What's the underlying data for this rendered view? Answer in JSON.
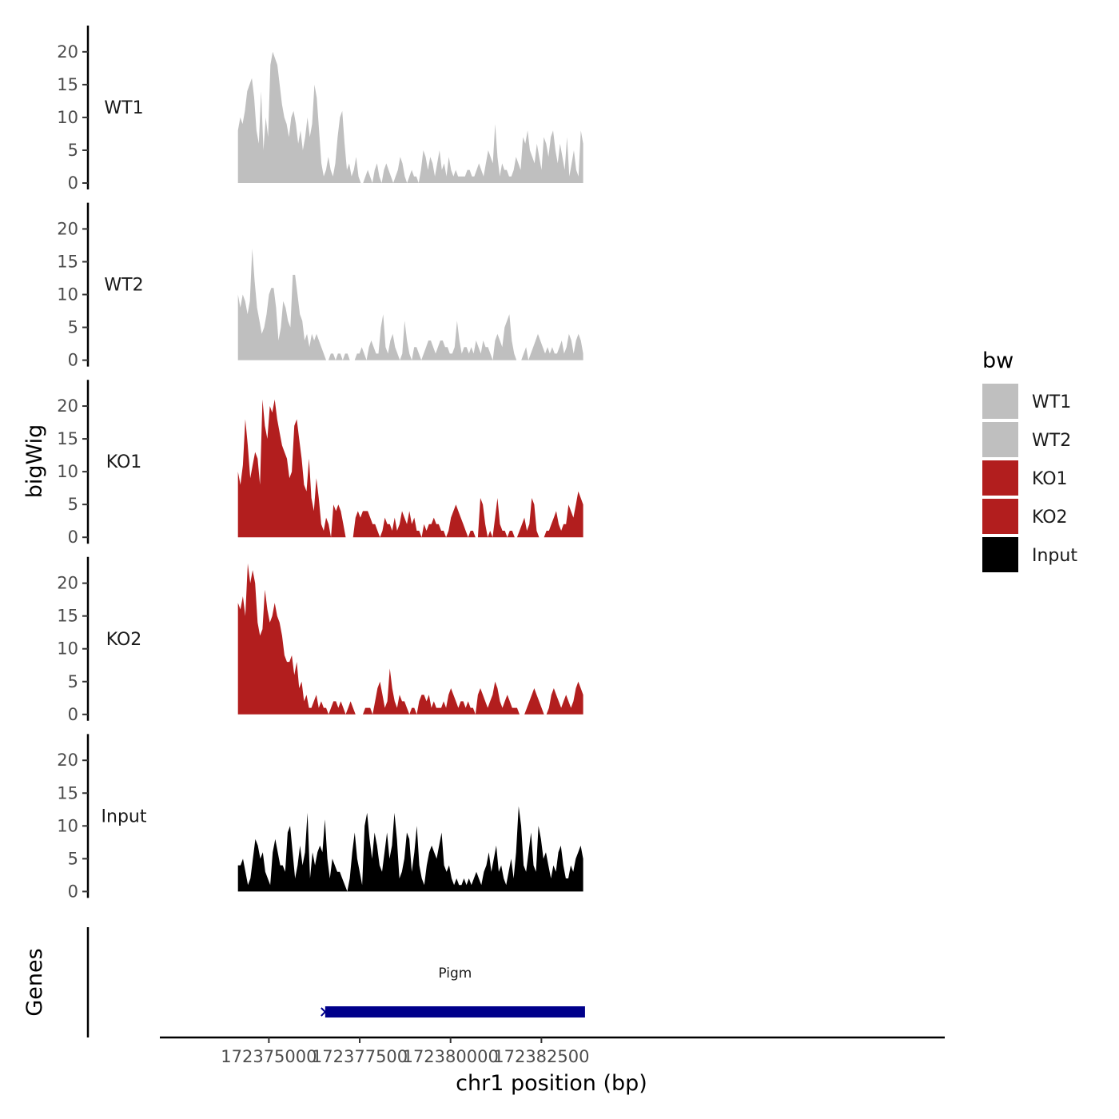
{
  "chart_data": {
    "type": "area",
    "ylabel": "bigWig",
    "xlabel": "chr1 position (bp)",
    "ylim": [
      0,
      24
    ],
    "yticks": [
      0,
      5,
      10,
      15,
      20
    ],
    "xlim": [
      172372000,
      172393600
    ],
    "xticks": [
      172375000,
      172377500,
      172380000,
      172382500
    ],
    "xtick_labels": [
      "172375000",
      "172377500",
      "172380000",
      "172382500"
    ],
    "x_start": 172374150,
    "x_end": 172383650,
    "legend": {
      "title": "bw",
      "position": "right",
      "entries": [
        {
          "label": "WT1",
          "color": "#bfbfbf"
        },
        {
          "label": "WT2",
          "color": "#bfbfbf"
        },
        {
          "label": "KO1",
          "color": "#b21e1e"
        },
        {
          "label": "KO2",
          "color": "#b21e1e"
        },
        {
          "label": "Input",
          "color": "#000000"
        }
      ]
    },
    "series": [
      {
        "name": "WT1",
        "color": "#bfbfbf",
        "values": [
          8,
          10,
          9,
          11,
          14,
          15,
          16,
          13,
          8,
          6,
          14,
          5,
          10,
          7,
          18,
          20,
          19,
          18,
          15,
          12,
          10,
          9,
          7,
          10,
          11,
          9,
          6,
          8,
          5,
          7,
          10,
          7,
          9,
          15,
          13,
          8,
          3,
          1,
          2,
          4,
          2,
          1,
          3,
          7,
          10,
          11,
          6,
          2,
          3,
          1,
          2,
          4,
          1,
          0,
          0,
          1,
          2,
          1,
          0,
          2,
          3,
          1,
          0,
          2,
          3,
          2,
          1,
          0,
          1,
          2,
          4,
          3,
          1,
          0,
          1,
          2,
          1,
          1,
          0,
          2,
          5,
          4,
          2,
          4,
          3,
          1,
          3,
          5,
          2,
          3,
          1,
          4,
          2,
          1,
          2,
          1,
          1,
          1,
          1,
          2,
          2,
          1,
          1,
          2,
          3,
          2,
          1,
          3,
          5,
          4,
          3,
          9,
          4,
          1,
          3,
          2,
          2,
          1,
          1,
          2,
          4,
          3,
          2,
          7,
          6,
          8,
          5,
          4,
          3,
          6,
          4,
          2,
          7,
          6,
          4,
          7,
          8,
          5,
          3,
          6,
          4,
          2,
          7,
          1,
          3,
          5,
          2,
          1,
          8,
          6
        ]
      },
      {
        "name": "WT2",
        "color": "#bfbfbf",
        "values": [
          10,
          8,
          10,
          9,
          7,
          9,
          17,
          12,
          8,
          6,
          4,
          5,
          7,
          10,
          11,
          11,
          8,
          3,
          5,
          9,
          8,
          6,
          5,
          13,
          13,
          10,
          7,
          6,
          3,
          4,
          2,
          4,
          3,
          4,
          3,
          2,
          1,
          0,
          0,
          1,
          1,
          0,
          1,
          1,
          0,
          1,
          1,
          0,
          0,
          0,
          1,
          1,
          2,
          1,
          0,
          2,
          3,
          2,
          1,
          1,
          5,
          7,
          2,
          1,
          3,
          4,
          2,
          1,
          0,
          1,
          6,
          3,
          1,
          0,
          2,
          2,
          1,
          0,
          1,
          2,
          3,
          3,
          2,
          1,
          2,
          3,
          3,
          2,
          2,
          1,
          1,
          2,
          6,
          3,
          1,
          2,
          2,
          1,
          2,
          1,
          3,
          2,
          1,
          3,
          2,
          2,
          1,
          0,
          3,
          4,
          3,
          2,
          5,
          6,
          7,
          3,
          1,
          0,
          0,
          0,
          1,
          2,
          0,
          1,
          2,
          3,
          4,
          3,
          2,
          1,
          2,
          1,
          2,
          1,
          1,
          2,
          3,
          1,
          2,
          4,
          3,
          1,
          3,
          4,
          3,
          1
        ]
      },
      {
        "name": "KO1",
        "color": "#b21e1e",
        "values": [
          10,
          8,
          11,
          18,
          14,
          9,
          11,
          13,
          12,
          8,
          21,
          17,
          15,
          20,
          19,
          21,
          18,
          16,
          14,
          13,
          12,
          9,
          10,
          17,
          18,
          15,
          12,
          8,
          7,
          12,
          6,
          4,
          9,
          6,
          2,
          1,
          3,
          2,
          0,
          5,
          4,
          5,
          4,
          2,
          0,
          0,
          0,
          0,
          3,
          4,
          3,
          4,
          4,
          4,
          3,
          2,
          2,
          1,
          0,
          1,
          3,
          2,
          2,
          1,
          3,
          1,
          2,
          4,
          3,
          2,
          4,
          2,
          3,
          1,
          1,
          0,
          2,
          1,
          2,
          2,
          3,
          2,
          2,
          1,
          1,
          0,
          1,
          3,
          4,
          5,
          4,
          3,
          2,
          1,
          0,
          1,
          1,
          0,
          0,
          6,
          5,
          2,
          0,
          1,
          0,
          3,
          6,
          2,
          1,
          1,
          0,
          1,
          1,
          0,
          0,
          1,
          2,
          3,
          1,
          2,
          6,
          5,
          1,
          0,
          0,
          0,
          1,
          1,
          2,
          3,
          4,
          2,
          1,
          2,
          2,
          5,
          4,
          3,
          5,
          7,
          6,
          5
        ]
      },
      {
        "name": "KO2",
        "color": "#b21e1e",
        "values": [
          17,
          16,
          18,
          15,
          23,
          20,
          22,
          20,
          14,
          12,
          13,
          19,
          16,
          14,
          15,
          17,
          15,
          14,
          12,
          9,
          8,
          8,
          9,
          6,
          8,
          4,
          5,
          2,
          3,
          1,
          1,
          2,
          3,
          1,
          2,
          1,
          1,
          0,
          1,
          2,
          2,
          1,
          2,
          1,
          0,
          1,
          2,
          1,
          0,
          0,
          0,
          0,
          1,
          1,
          1,
          0,
          2,
          4,
          5,
          3,
          1,
          2,
          7,
          4,
          2,
          1,
          3,
          2,
          2,
          1,
          0,
          1,
          1,
          0,
          2,
          3,
          3,
          2,
          3,
          1,
          2,
          1,
          1,
          1,
          2,
          1,
          3,
          4,
          3,
          2,
          1,
          2,
          2,
          1,
          2,
          1,
          1,
          0,
          3,
          4,
          3,
          2,
          1,
          2,
          3,
          5,
          4,
          2,
          1,
          2,
          3,
          2,
          1,
          1,
          1,
          0,
          0,
          0,
          1,
          2,
          3,
          4,
          3,
          2,
          1,
          0,
          0,
          1,
          3,
          4,
          3,
          2,
          1,
          2,
          3,
          2,
          1,
          2,
          4,
          5,
          4,
          3
        ]
      },
      {
        "name": "Input",
        "color": "#000000",
        "values": [
          4,
          4,
          5,
          3,
          1,
          2,
          5,
          8,
          7,
          5,
          6,
          3,
          2,
          1,
          6,
          8,
          6,
          4,
          4,
          3,
          9,
          10,
          6,
          2,
          4,
          7,
          4,
          6,
          12,
          2,
          6,
          4,
          6,
          7,
          6,
          11,
          5,
          2,
          5,
          4,
          3,
          3,
          2,
          1,
          0,
          2,
          6,
          9,
          5,
          3,
          1,
          10,
          12,
          8,
          5,
          9,
          7,
          4,
          3,
          6,
          9,
          5,
          7,
          12,
          8,
          2,
          3,
          5,
          9,
          8,
          3,
          6,
          10,
          4,
          2,
          1,
          4,
          6,
          7,
          6,
          5,
          7,
          9,
          4,
          3,
          4,
          2,
          1,
          2,
          1,
          1,
          2,
          1,
          2,
          1,
          2,
          3,
          2,
          1,
          3,
          4,
          6,
          3,
          5,
          7,
          3,
          4,
          2,
          1,
          3,
          5,
          2,
          6,
          13,
          10,
          4,
          3,
          6,
          9,
          4,
          3,
          10,
          8,
          5,
          6,
          4,
          2,
          4,
          3,
          6,
          7,
          4,
          2,
          2,
          4,
          3,
          5,
          6,
          7,
          5
        ]
      }
    ],
    "genes_label": "Genes",
    "genes": [
      {
        "name": "Pigm",
        "start": 172376550,
        "end": 172383700,
        "strand": "-",
        "color": "#00008b"
      }
    ]
  }
}
